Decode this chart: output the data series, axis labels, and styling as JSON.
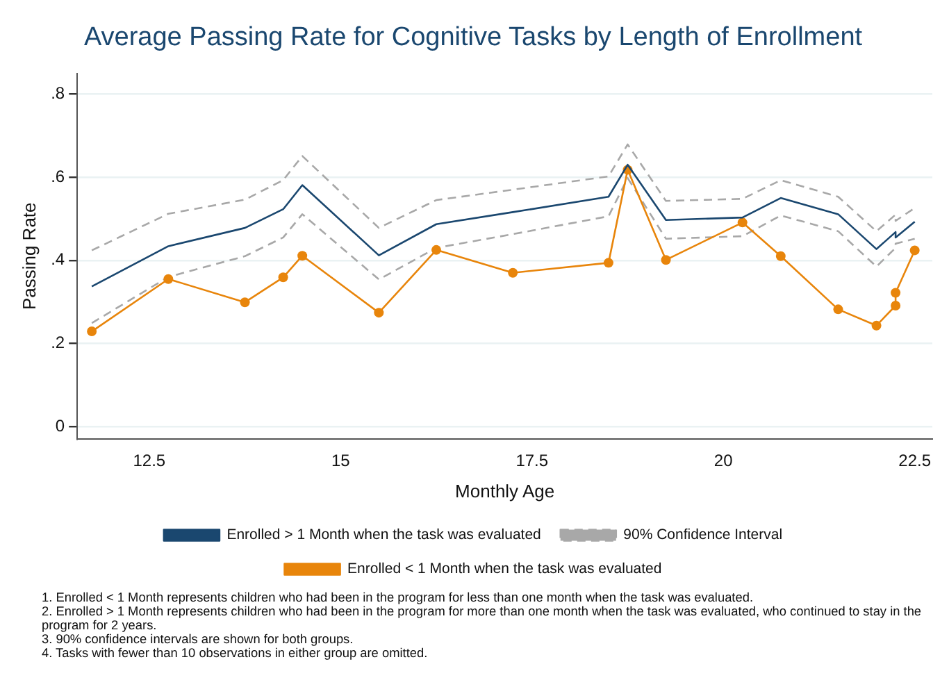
{
  "chart_data": {
    "type": "line",
    "title": "Average Passing Rate for Cognitive Tasks by Length of Enrollment",
    "xlabel": "Monthly Age",
    "ylabel": "Passing Rate",
    "xlim": [
      11.56,
      22.73
    ],
    "xticks": [
      12.5,
      15,
      17.5,
      20,
      22.5
    ],
    "ylim": [
      -0.03,
      0.85
    ],
    "yticks": [
      {
        "value": 0,
        "label": "0"
      },
      {
        "value": 0.2,
        "label": ".2"
      },
      {
        "value": 0.4,
        "label": ".4"
      },
      {
        "value": 0.6,
        "label": ".6"
      },
      {
        "value": 0.8,
        "label": ".8"
      }
    ],
    "grid": "y",
    "legend": "bottom",
    "series": [
      {
        "name": "Enrolled > 1 Month when the task was evaluated",
        "color": "#1a476f",
        "marker": "none",
        "line_style": "solid",
        "x": [
          11.75,
          12.75,
          13.75,
          14.25,
          14.5,
          15.5,
          16.25,
          17.25,
          18.5,
          18.75,
          19.25,
          20.25,
          20.75,
          21.5,
          22,
          22.25,
          22.25,
          22.5
        ],
        "values": [
          0.337,
          0.434,
          0.478,
          0.523,
          0.581,
          0.412,
          0.487,
          0.516,
          0.553,
          0.63,
          0.497,
          0.503,
          0.55,
          0.511,
          0.427,
          0.468,
          0.455,
          0.493
        ]
      },
      {
        "name": "90% Confidence Interval",
        "color": "#a8a8a8",
        "marker": "none",
        "line_style": "dashed",
        "x": [
          11.75,
          12.75,
          13.75,
          14.25,
          14.5,
          15.5,
          16.25,
          17.25,
          18.5,
          18.75,
          19.25,
          20.25,
          20.75,
          21.5,
          22,
          22.25,
          22.25,
          22.5
        ],
        "values": [
          0.424,
          0.512,
          0.546,
          0.593,
          0.651,
          0.478,
          0.545,
          0.57,
          0.602,
          0.679,
          0.543,
          0.548,
          0.593,
          0.553,
          0.47,
          0.51,
          0.495,
          0.526
        ]
      },
      {
        "name": "Enrolled < 1 Month when the task was evaluated",
        "color": "#e8850b",
        "marker": "circle",
        "line_style": "solid",
        "x": [
          11.75,
          12.75,
          13.75,
          14.25,
          14.5,
          15.5,
          16.25,
          17.25,
          18.5,
          18.75,
          19.25,
          20.25,
          20.75,
          21.5,
          22,
          22.25,
          22.25,
          22.5
        ],
        "values": [
          0.229,
          0.355,
          0.299,
          0.359,
          0.411,
          0.274,
          0.425,
          0.37,
          0.394,
          0.618,
          0.401,
          0.491,
          0.41,
          0.282,
          0.243,
          0.291,
          0.322,
          0.424
        ]
      },
      {
        "color": "#a8a8a8",
        "marker": "none",
        "line_style": "dashed",
        "x": [
          11.75,
          12.75,
          13.75,
          14.25,
          14.5,
          15.5,
          16.25,
          17.25,
          18.5,
          18.75,
          19.25,
          20.25,
          20.75,
          21.5,
          22,
          22.25,
          22.25,
          22.5
        ],
        "values": [
          0.249,
          0.36,
          0.41,
          0.455,
          0.511,
          0.354,
          0.43,
          0.463,
          0.506,
          0.598,
          0.452,
          0.458,
          0.508,
          0.47,
          0.385,
          0.43,
          0.44,
          0.452
        ]
      }
    ],
    "annotations": [
      "1. Enrolled < 1 Month represents children who had been in the program for less than one month when the task was evaluated.",
      "2. Enrolled > 1 Month represents children who had been in the program for more than one month when the task was evaluated, who continued to stay in the program for 2 years.",
      "3. 90% confidence intervals are shown for both groups.",
      "4. Tasks with fewer than 10 observations in either group are omitted."
    ]
  }
}
